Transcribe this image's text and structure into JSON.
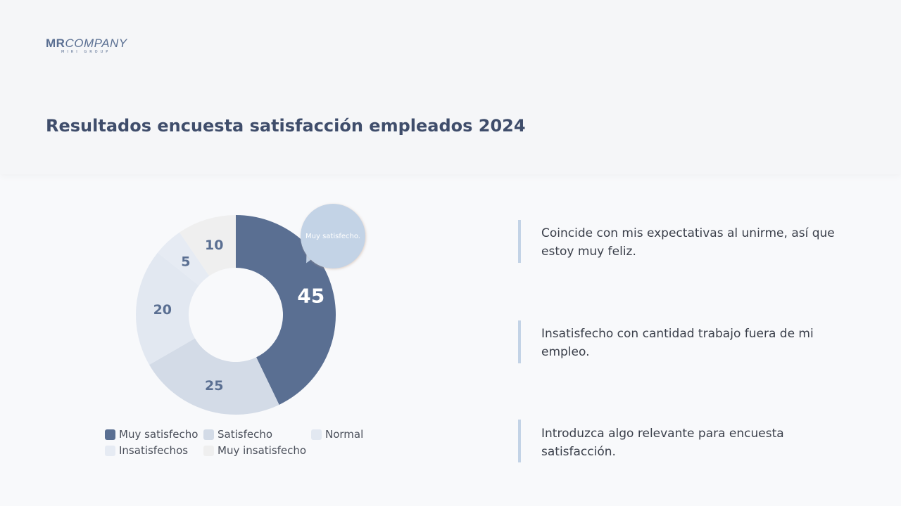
{
  "logo": {
    "main_bold": "MR",
    "main": "COMPANY",
    "sub": "MIRI GROUP"
  },
  "title": "Resultados encuesta satisfacción empleados 2024",
  "chart_data": {
    "type": "pie",
    "donut": true,
    "categories": [
      "Muy satisfecho",
      "Satisfecho",
      "Normal",
      "Insatisfechos",
      "Muy insatisfecho"
    ],
    "values": [
      45,
      25,
      20,
      5,
      10
    ],
    "colors": [
      "#5a6f92",
      "#d3dbe7",
      "#e2e8f1",
      "#e6ebf3",
      "#efefef"
    ],
    "legend_position": "bottom",
    "callout": "Muy satisfecho."
  },
  "quotes": [
    "Coincide con mis expectativas al unirme, así que estoy muy feliz.",
    "Insatisfecho con cantidad trabajo fuera de mi empleo.",
    "Introduzca algo relevante para encuesta satisfacción."
  ]
}
